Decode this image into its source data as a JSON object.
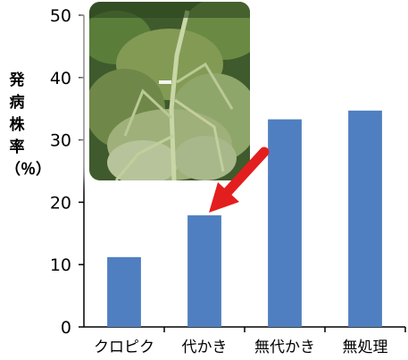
{
  "chart_data": {
    "type": "bar",
    "title": "",
    "xlabel": "",
    "ylabel": "発病株率（％）",
    "categories": [
      "クロピク",
      "代かき",
      "無代かき",
      "無処理"
    ],
    "values": [
      11.2,
      17.9,
      33.3,
      34.7
    ],
    "ylim": [
      0,
      50
    ],
    "yticks": [
      0,
      10,
      20,
      30,
      40,
      50
    ],
    "grid": false,
    "bar_color": "#4f7fc0",
    "annotation": {
      "type": "arrow",
      "target_category": "代かき",
      "color": "#e31e1e"
    },
    "inset_image": "diseased-tomato-plant-photo"
  }
}
